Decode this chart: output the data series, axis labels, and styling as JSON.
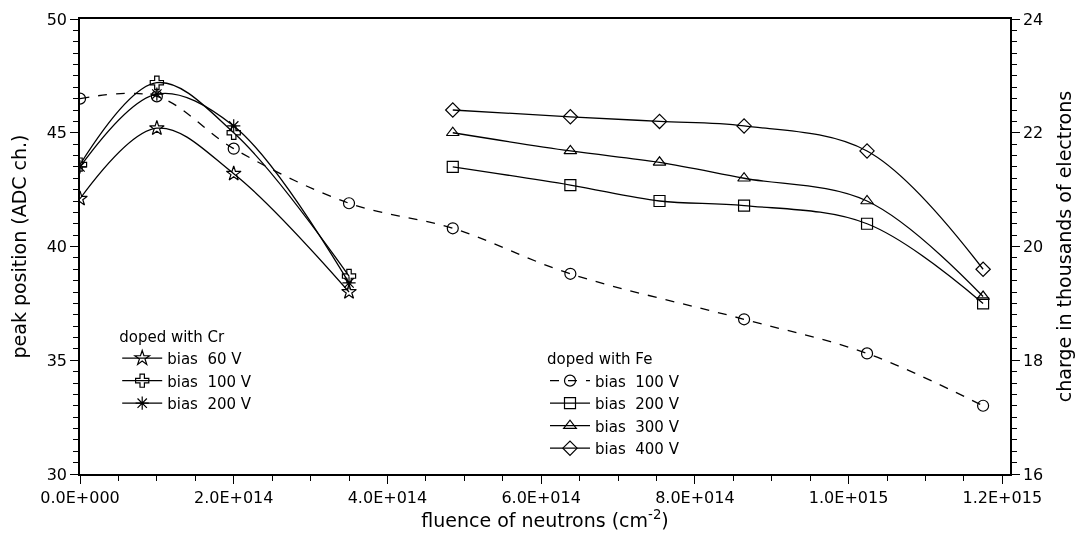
{
  "chart_data": {
    "type": "line",
    "xlabel": "fluence of neutrons (cm$^{-2}$)",
    "ylabel": "peak position (ADC ch.)",
    "y2label": "charge in thousands of electrons",
    "xlim": [
      0,
      1210000000000000.0
    ],
    "xticks": [
      {
        "value": 0,
        "label": "0.0E+000"
      },
      {
        "value": 200000000000000.0,
        "label": "2.0E+014"
      },
      {
        "value": 400000000000000.0,
        "label": "4.0E+014"
      },
      {
        "value": 600000000000000.0,
        "label": "6.0E+014"
      },
      {
        "value": 800000000000000.0,
        "label": "8.0E+014"
      },
      {
        "value": 1000000000000000.0,
        "label": "1.0E+015"
      },
      {
        "value": 1200000000000000.0,
        "label": "1.2E+015"
      }
    ],
    "ylim": [
      30,
      50
    ],
    "yticks": [
      30,
      35,
      40,
      45,
      50
    ],
    "y2lim": [
      16,
      24
    ],
    "y2ticks": [
      16,
      18,
      20,
      22,
      24
    ],
    "legend": "bottom left",
    "annotations": [
      "doped with Cr",
      "doped with Fe"
    ],
    "series": [
      {
        "name": "bias  60 V",
        "color": "#000000",
        "marker": "star",
        "line_style": "solid",
        "x": [
          0,
          100000000000000.0,
          200000000000000.0,
          350000000000000.0
        ],
        "values": [
          42.1,
          45.2,
          43.2,
          38.0
        ]
      },
      {
        "name": "bias  100 V",
        "color": "#000000",
        "marker": "cross",
        "line_style": "solid",
        "x": [
          0,
          100000000000000.0,
          200000000000000.0,
          350000000000000.0
        ],
        "values": [
          43.6,
          47.2,
          45.0,
          38.7
        ]
      },
      {
        "name": "bias  200 V",
        "color": "#000000",
        "marker": "cross",
        "line_style": "solid",
        "x": [
          0,
          100000000000000.0,
          200000000000000.0,
          350000000000000.0
        ],
        "values": [
          43.5,
          46.7,
          45.3,
          38.4
        ]
      },
      {
        "name": "bias  100 V",
        "color": "#000000",
        "marker": "circle",
        "line_style": "dashed",
        "x": [
          0,
          100000000000000.0,
          200000000000000.0,
          350000000000000.0,
          485000000000000.0,
          638000000000000.0,
          864000000000000.0,
          1024000000000000.0,
          1175000000000000.0
        ],
        "values": [
          46.5,
          46.6,
          44.3,
          41.9,
          40.8,
          38.8,
          36.8,
          35.3,
          33.0
        ]
      },
      {
        "name": "bias  200 V",
        "color": "#000000",
        "marker": "square",
        "line_style": "solid",
        "x": [
          485000000000000.0,
          638000000000000.0,
          754000000000000.0,
          864000000000000.0,
          1024000000000000.0,
          1175000000000000.0
        ],
        "values": [
          43.5,
          42.7,
          42.0,
          41.8,
          41.0,
          37.5
        ]
      },
      {
        "name": "bias  300 V",
        "color": "#000000",
        "marker": "triangle",
        "line_style": "solid",
        "x": [
          485000000000000.0,
          638000000000000.0,
          754000000000000.0,
          864000000000000.0,
          1024000000000000.0,
          1175000000000000.0
        ],
        "values": [
          45.0,
          44.2,
          43.7,
          43.0,
          42.0,
          37.8
        ]
      },
      {
        "name": "bias  400 V",
        "color": "#000000",
        "marker": "diamond",
        "line_style": "solid",
        "x": [
          485000000000000.0,
          638000000000000.0,
          754000000000000.0,
          864000000000000.0,
          1024000000000000.0,
          1175000000000000.0
        ],
        "values": [
          46.0,
          45.7,
          45.5,
          45.3,
          44.2,
          39.0
        ]
      }
    ]
  }
}
